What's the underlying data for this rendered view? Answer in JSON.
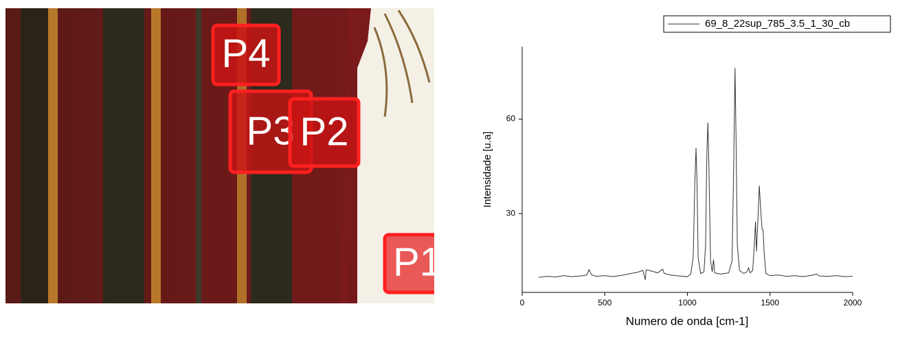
{
  "photo": {
    "labels": [
      "P4",
      "P3",
      "P2",
      "P1"
    ]
  },
  "chart_data": {
    "type": "line",
    "xlabel": "Numero de onda [cm-1]",
    "ylabel": "Intensidade [u.a]",
    "x": [
      100,
      150,
      200,
      250,
      300,
      350,
      390,
      405,
      420,
      450,
      500,
      550,
      600,
      650,
      700,
      730,
      745,
      750,
      780,
      820,
      850,
      860,
      900,
      950,
      1000,
      1020,
      1035,
      1045,
      1052,
      1058,
      1065,
      1080,
      1100,
      1110,
      1118,
      1124,
      1130,
      1140,
      1150,
      1158,
      1165,
      1200,
      1250,
      1270,
      1280,
      1288,
      1294,
      1302,
      1315,
      1340,
      1360,
      1370,
      1380,
      1395,
      1405,
      1412,
      1418,
      1425,
      1435,
      1445,
      1452,
      1458,
      1465,
      1475,
      1500,
      1550,
      1600,
      1650,
      1700,
      1750,
      1780,
      1800,
      1850,
      1900,
      1950,
      2000
    ],
    "series": [
      {
        "name": "69_8_22sup_785_3.5_1_30_cb",
        "color": "#333333",
        "values": [
          9.8,
          10.1,
          9.9,
          10.3,
          10.0,
          10.2,
          10.5,
          12.2,
          10.6,
          10.1,
          10.3,
          10.0,
          10.4,
          10.9,
          11.4,
          12.0,
          9.0,
          12.2,
          11.8,
          11.2,
          12.4,
          11.0,
          10.5,
          10.2,
          10.0,
          10.8,
          16,
          40,
          50.9,
          40,
          16,
          11,
          11.5,
          20,
          50,
          58.9,
          45,
          15,
          11.5,
          15.4,
          11.2,
          10.8,
          11.2,
          15,
          45,
          76.3,
          55,
          20,
          12,
          11,
          11.5,
          12.8,
          11.2,
          12,
          20,
          27.4,
          18,
          26,
          38.9,
          30,
          25,
          24.8,
          17,
          11,
          10.3,
          10.5,
          10.1,
          10.3,
          10.0,
          10.4,
          10.8,
          10.2,
          10.1,
          10.3,
          10.0,
          10.1
        ]
      }
    ],
    "xlim": [
      0,
      2000
    ],
    "xticks": [
      0,
      500,
      1000,
      1500,
      2000
    ],
    "ylim": [
      5,
      83
    ],
    "yticks": [
      30,
      60
    ],
    "legend": "top-right"
  }
}
